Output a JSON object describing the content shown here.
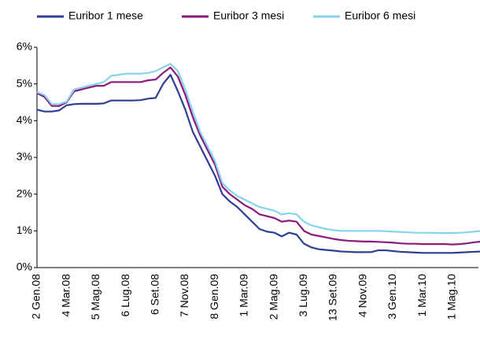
{
  "chart_data": {
    "type": "line",
    "categories": [
      "2 Gen.08",
      null,
      null,
      null,
      "4 Mar.08",
      null,
      null,
      null,
      "5 Mag.08",
      null,
      null,
      null,
      "6 Lug.08",
      null,
      null,
      null,
      "6 Set.08",
      null,
      null,
      null,
      "7 Nov.08",
      null,
      null,
      null,
      "8 Gen.09",
      null,
      null,
      null,
      "1 Mar.09",
      null,
      null,
      null,
      "2 Mag.09",
      null,
      null,
      null,
      "3 Lug.09",
      null,
      null,
      null,
      "13 Set.09",
      null,
      null,
      null,
      "4 Nov.09",
      null,
      null,
      null,
      "3 Gen.10",
      null,
      null,
      null,
      "1 Mar.10",
      null,
      null,
      null,
      "1 Mag.10",
      null,
      null,
      null,
      null,
      null
    ],
    "series": [
      {
        "name": "Euribor 1 mese",
        "color": "#2e3f93",
        "values": [
          4.3,
          4.25,
          4.25,
          4.28,
          4.42,
          4.45,
          4.46,
          4.46,
          4.46,
          4.47,
          4.55,
          4.55,
          4.55,
          4.55,
          4.56,
          4.6,
          4.62,
          5.0,
          5.25,
          4.8,
          4.3,
          3.7,
          3.3,
          2.9,
          2.5,
          2.0,
          1.8,
          1.65,
          1.45,
          1.25,
          1.05,
          0.98,
          0.95,
          0.85,
          0.95,
          0.9,
          0.65,
          0.55,
          0.5,
          0.48,
          0.46,
          0.44,
          0.43,
          0.42,
          0.42,
          0.42,
          0.47,
          0.47,
          0.45,
          0.43,
          0.42,
          0.41,
          0.4,
          0.4,
          0.4,
          0.4,
          0.4,
          0.41,
          0.42,
          0.43,
          0.44,
          0.45
        ]
      },
      {
        "name": "Euribor 3 mesi",
        "color": "#8b1a7c",
        "values": [
          4.75,
          4.65,
          4.4,
          4.4,
          4.5,
          4.8,
          4.85,
          4.9,
          4.95,
          4.95,
          5.05,
          5.05,
          5.05,
          5.05,
          5.05,
          5.1,
          5.12,
          5.3,
          5.45,
          5.2,
          4.7,
          4.1,
          3.6,
          3.2,
          2.8,
          2.2,
          2.0,
          1.85,
          1.7,
          1.6,
          1.45,
          1.4,
          1.35,
          1.25,
          1.28,
          1.25,
          1.0,
          0.9,
          0.86,
          0.82,
          0.78,
          0.75,
          0.73,
          0.72,
          0.71,
          0.71,
          0.7,
          0.69,
          0.68,
          0.66,
          0.65,
          0.65,
          0.64,
          0.64,
          0.64,
          0.64,
          0.63,
          0.64,
          0.66,
          0.69,
          0.71,
          0.73
        ]
      },
      {
        "name": "Euribor 6 mesi",
        "color": "#87d3ee",
        "values": [
          4.78,
          4.7,
          4.45,
          4.45,
          4.52,
          4.85,
          4.9,
          4.95,
          5.0,
          5.05,
          5.22,
          5.25,
          5.28,
          5.28,
          5.28,
          5.3,
          5.35,
          5.45,
          5.55,
          5.35,
          4.85,
          4.25,
          3.7,
          3.3,
          2.9,
          2.3,
          2.1,
          1.95,
          1.85,
          1.75,
          1.65,
          1.6,
          1.55,
          1.45,
          1.48,
          1.45,
          1.25,
          1.15,
          1.1,
          1.05,
          1.02,
          1.0,
          1.0,
          1.0,
          1.0,
          1.0,
          1.0,
          0.99,
          0.98,
          0.97,
          0.96,
          0.95,
          0.95,
          0.95,
          0.94,
          0.94,
          0.94,
          0.95,
          0.96,
          0.98,
          1.0,
          1.02
        ]
      }
    ],
    "ylim": [
      0,
      6
    ],
    "yticks": [
      {
        "value": 0,
        "label": "0%"
      },
      {
        "value": 1,
        "label": "1%"
      },
      {
        "value": 2,
        "label": "2%"
      },
      {
        "value": 3,
        "label": "3%"
      },
      {
        "value": 4,
        "label": "4%"
      },
      {
        "value": 5,
        "label": "5%"
      },
      {
        "value": 6,
        "label": "6%"
      }
    ],
    "grid": false,
    "legend": "top"
  }
}
